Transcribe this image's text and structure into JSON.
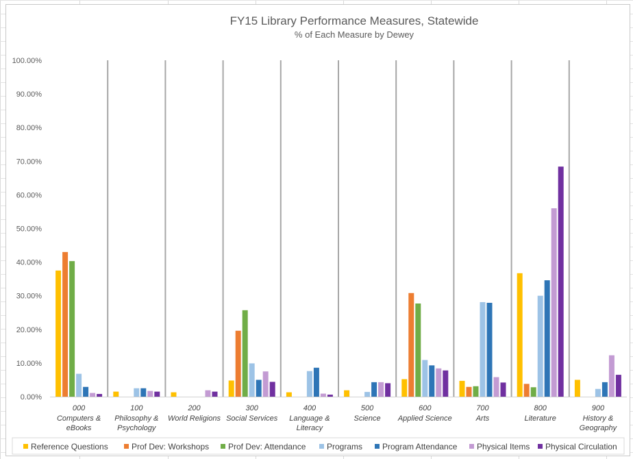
{
  "chart_data": {
    "type": "bar",
    "title": "FY15 Library Performance Measures, Statewide",
    "subtitle": "% of Each Measure by Dewey",
    "ylim": [
      0,
      100
    ],
    "yticks": [
      "0.00%",
      "10.00%",
      "20.00%",
      "30.00%",
      "40.00%",
      "50.00%",
      "60.00%",
      "70.00%",
      "80.00%",
      "90.00%",
      "100.00%"
    ],
    "grid": false,
    "legend_position": "bottom",
    "categories": [
      {
        "code": "000",
        "lines": [
          "Computers &",
          "eBooks"
        ]
      },
      {
        "code": "100",
        "lines": [
          "Philosophy &",
          "Psychology"
        ]
      },
      {
        "code": "200",
        "lines": [
          "World Religions"
        ]
      },
      {
        "code": "300",
        "lines": [
          "Social Services"
        ]
      },
      {
        "code": "400",
        "lines": [
          "Language &",
          "Literacy"
        ]
      },
      {
        "code": "500",
        "lines": [
          "Science"
        ]
      },
      {
        "code": "600",
        "lines": [
          "Applied Science"
        ]
      },
      {
        "code": "700",
        "lines": [
          "Arts"
        ]
      },
      {
        "code": "800",
        "lines": [
          "Literature"
        ]
      },
      {
        "code": "900",
        "lines": [
          "History &",
          "Geography"
        ]
      }
    ],
    "series": [
      {
        "name": "Reference Questions",
        "color": "#FFC000",
        "values": [
          37.5,
          1.5,
          1.3,
          4.8,
          1.3,
          1.9,
          5.2,
          4.7,
          36.7,
          5.0
        ]
      },
      {
        "name": "Prof Dev: Workshops",
        "color": "#ED7D31",
        "values": [
          43.0,
          0,
          0,
          19.6,
          0,
          0,
          30.8,
          2.9,
          3.8,
          0
        ]
      },
      {
        "name": "Prof Dev: Attendance",
        "color": "#70AD47",
        "values": [
          40.3,
          0,
          0,
          25.7,
          0,
          0,
          27.7,
          3.1,
          2.8,
          0
        ]
      },
      {
        "name": "Programs",
        "color": "#9DC3E6",
        "values": [
          6.8,
          2.5,
          0,
          9.9,
          7.6,
          1.4,
          10.9,
          28.1,
          30.0,
          2.3
        ]
      },
      {
        "name": "Program Attendance",
        "color": "#2E75B6",
        "values": [
          2.9,
          2.5,
          0,
          5.0,
          8.6,
          4.3,
          9.3,
          27.9,
          34.6,
          4.3
        ]
      },
      {
        "name": "Physical Items",
        "color": "#C39BD3",
        "values": [
          1.1,
          1.7,
          1.9,
          7.5,
          0.9,
          4.3,
          8.4,
          5.8,
          56.0,
          12.3
        ]
      },
      {
        "name": "Physical Circulation",
        "color": "#7030A0",
        "values": [
          0.8,
          1.5,
          1.5,
          4.4,
          0.6,
          4.0,
          7.8,
          4.2,
          68.4,
          6.5
        ]
      }
    ]
  }
}
